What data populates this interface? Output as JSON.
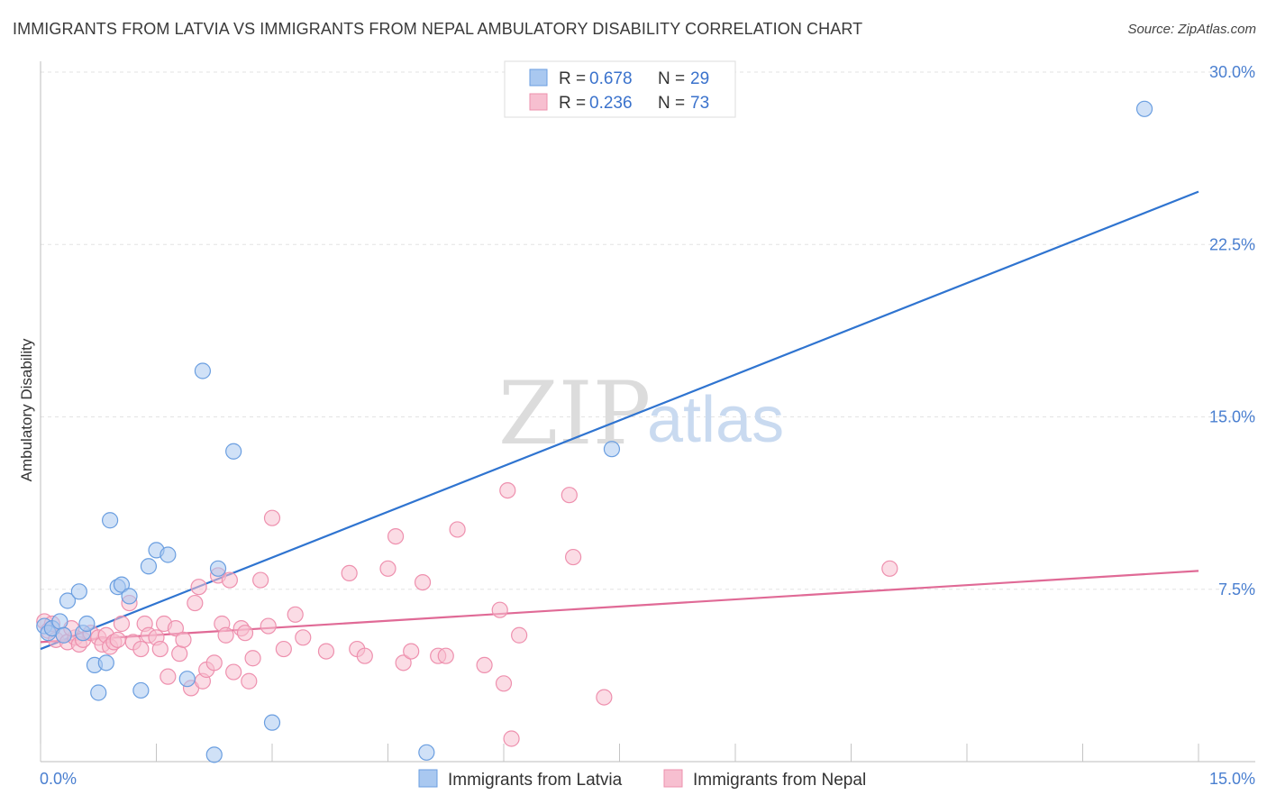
{
  "header": {
    "title": "IMMIGRANTS FROM LATVIA VS IMMIGRANTS FROM NEPAL AMBULATORY DISABILITY CORRELATION CHART",
    "source": "Source: ZipAtlas.com"
  },
  "watermark": {
    "zip": "ZIP",
    "atlas": "atlas"
  },
  "legend_top": {
    "rows": [
      {
        "r_label": "R = ",
        "r_value": "0.678",
        "n_label": "N = ",
        "n_value": "29"
      },
      {
        "r_label": "R = ",
        "r_value": "0.236",
        "n_label": "N = ",
        "n_value": "73"
      }
    ]
  },
  "legend_bottom": {
    "items": [
      {
        "label": "Immigrants from Latvia"
      },
      {
        "label": "Immigrants from Nepal"
      }
    ]
  },
  "colors": {
    "latvia_fill": "#a9c8f0",
    "latvia_stroke": "#6a9ee0",
    "latvia_line": "#2f74d0",
    "nepal_fill": "#f7bfd0",
    "nepal_stroke": "#ee90ae",
    "nepal_line": "#e06a96",
    "tick_text": "#4a7fd0",
    "grid": "#e3e3e3"
  },
  "chart_data": {
    "type": "scatter",
    "title": "IMMIGRANTS FROM LATVIA VS IMMIGRANTS FROM NEPAL AMBULATORY DISABILITY CORRELATION CHART",
    "xlabel": "",
    "ylabel": "Ambulatory Disability",
    "xlim": [
      0,
      15
    ],
    "ylim": [
      0,
      30
    ],
    "x_tick_labels": [
      "0.0%",
      "15.0%"
    ],
    "y_ticks": [
      7.5,
      15.0,
      22.5,
      30.0
    ],
    "y_tick_labels": [
      "7.5%",
      "15.0%",
      "22.5%",
      "30.0%"
    ],
    "grid": true,
    "legend_position": "top-center",
    "series": [
      {
        "name": "Immigrants from Latvia",
        "r": 0.678,
        "n": 29,
        "trend": [
          [
            0,
            4.9
          ],
          [
            15,
            24.8
          ]
        ],
        "points": [
          [
            0.05,
            5.9
          ],
          [
            0.1,
            5.6
          ],
          [
            0.15,
            5.8
          ],
          [
            0.25,
            6.1
          ],
          [
            0.3,
            5.5
          ],
          [
            0.35,
            7.0
          ],
          [
            0.5,
            7.4
          ],
          [
            0.55,
            5.6
          ],
          [
            0.6,
            6.0
          ],
          [
            0.7,
            4.2
          ],
          [
            0.75,
            3.0
          ],
          [
            0.85,
            4.3
          ],
          [
            0.9,
            10.5
          ],
          [
            1.0,
            7.6
          ],
          [
            1.05,
            7.7
          ],
          [
            1.15,
            7.2
          ],
          [
            1.3,
            3.1
          ],
          [
            1.4,
            8.5
          ],
          [
            1.5,
            9.2
          ],
          [
            1.65,
            9.0
          ],
          [
            1.9,
            3.6
          ],
          [
            2.1,
            17.0
          ],
          [
            2.25,
            0.3
          ],
          [
            2.3,
            8.4
          ],
          [
            2.5,
            13.5
          ],
          [
            3.0,
            1.7
          ],
          [
            5.0,
            0.4
          ],
          [
            7.4,
            13.6
          ],
          [
            14.3,
            28.4
          ]
        ]
      },
      {
        "name": "Immigrants from Nepal",
        "r": 0.236,
        "n": 73,
        "trend": [
          [
            0,
            5.2
          ],
          [
            15,
            8.3
          ]
        ],
        "points": [
          [
            0.05,
            6.1
          ],
          [
            0.1,
            5.7
          ],
          [
            0.2,
            5.3
          ],
          [
            0.3,
            5.5
          ],
          [
            0.35,
            5.2
          ],
          [
            0.45,
            5.4
          ],
          [
            0.5,
            5.1
          ],
          [
            0.55,
            5.3
          ],
          [
            0.65,
            5.6
          ],
          [
            0.75,
            5.4
          ],
          [
            0.8,
            5.1
          ],
          [
            0.85,
            5.5
          ],
          [
            0.9,
            5.0
          ],
          [
            0.95,
            5.2
          ],
          [
            1.05,
            6.0
          ],
          [
            1.15,
            6.9
          ],
          [
            1.2,
            5.2
          ],
          [
            1.3,
            4.9
          ],
          [
            1.35,
            6.0
          ],
          [
            1.4,
            5.5
          ],
          [
            1.5,
            5.4
          ],
          [
            1.55,
            4.9
          ],
          [
            1.6,
            6.0
          ],
          [
            1.65,
            3.7
          ],
          [
            1.75,
            5.8
          ],
          [
            1.8,
            4.7
          ],
          [
            1.85,
            5.3
          ],
          [
            1.95,
            3.2
          ],
          [
            2.0,
            6.9
          ],
          [
            2.05,
            7.6
          ],
          [
            2.1,
            3.5
          ],
          [
            2.15,
            4.0
          ],
          [
            2.25,
            4.3
          ],
          [
            2.3,
            8.1
          ],
          [
            2.35,
            6.0
          ],
          [
            2.4,
            5.5
          ],
          [
            2.45,
            7.9
          ],
          [
            2.5,
            3.9
          ],
          [
            2.6,
            5.8
          ],
          [
            2.65,
            5.6
          ],
          [
            2.7,
            3.5
          ],
          [
            2.75,
            4.5
          ],
          [
            2.85,
            7.9
          ],
          [
            2.95,
            5.9
          ],
          [
            3.0,
            10.6
          ],
          [
            3.15,
            4.9
          ],
          [
            3.3,
            6.4
          ],
          [
            3.4,
            5.4
          ],
          [
            3.7,
            4.8
          ],
          [
            4.0,
            8.2
          ],
          [
            4.1,
            4.9
          ],
          [
            4.2,
            4.6
          ],
          [
            4.5,
            8.4
          ],
          [
            4.6,
            9.8
          ],
          [
            4.7,
            4.3
          ],
          [
            4.8,
            4.8
          ],
          [
            4.95,
            7.8
          ],
          [
            5.15,
            4.6
          ],
          [
            5.25,
            4.6
          ],
          [
            5.4,
            10.1
          ],
          [
            5.75,
            4.2
          ],
          [
            5.95,
            6.6
          ],
          [
            6.0,
            3.4
          ],
          [
            6.05,
            11.8
          ],
          [
            6.1,
            1.0
          ],
          [
            6.2,
            5.5
          ],
          [
            6.85,
            11.6
          ],
          [
            6.9,
            8.9
          ],
          [
            7.3,
            2.8
          ],
          [
            11.0,
            8.4
          ],
          [
            0.15,
            6.0
          ],
          [
            0.4,
            5.8
          ],
          [
            1.0,
            5.3
          ]
        ]
      }
    ]
  }
}
